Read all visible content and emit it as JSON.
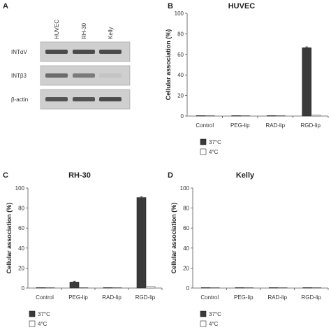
{
  "panels": {
    "a": {
      "letter": "A"
    },
    "b": {
      "letter": "B"
    },
    "c": {
      "letter": "C"
    },
    "d": {
      "letter": "D"
    }
  },
  "gel": {
    "lanes": [
      "HUVEC",
      "RH-30",
      "Kelly"
    ],
    "rows": [
      {
        "label": "INTαV",
        "intensity": [
          0.9,
          0.9,
          0.9
        ]
      },
      {
        "label": "INTβ3",
        "intensity": [
          0.7,
          0.6,
          0.15
        ]
      },
      {
        "label": "β-actin",
        "intensity": [
          0.85,
          0.85,
          0.9
        ]
      }
    ]
  },
  "legend": {
    "dark_label": "37°C",
    "light_label": "4°C"
  },
  "colors": {
    "dark_bar": "#3a3a3a",
    "light_bar": "#ffffff",
    "gel_bg": "#cfcfcf"
  },
  "chart_data": [
    {
      "type": "bar",
      "title": "HUVEC",
      "ylabel": "Cellular association (%)",
      "categories": [
        "Control",
        "PEG-lip",
        "RAD-lip",
        "RGD-lip"
      ],
      "ylim": [
        0,
        100
      ],
      "yticks": [
        0,
        20,
        40,
        60,
        80,
        100
      ],
      "series": [
        {
          "name": "37°C",
          "values": [
            0.3,
            0.3,
            0.3,
            66.5
          ]
        },
        {
          "name": "4°C",
          "values": [
            0.1,
            0.1,
            0.1,
            1.0
          ]
        }
      ]
    },
    {
      "type": "bar",
      "title": "RH-30",
      "ylabel": "Cellular association (%)",
      "categories": [
        "Control",
        "PEG-lip",
        "RAD-lip",
        "RGD-lip"
      ],
      "ylim": [
        0,
        100
      ],
      "yticks": [
        0,
        20,
        40,
        60,
        80,
        100
      ],
      "series": [
        {
          "name": "37°C",
          "values": [
            0.3,
            6.0,
            0.3,
            90.5
          ]
        },
        {
          "name": "4°C",
          "values": [
            0.1,
            0.2,
            0.1,
            1.5
          ]
        }
      ]
    },
    {
      "type": "bar",
      "title": "Kelly",
      "ylabel": "Cellular association (%)",
      "categories": [
        "Control",
        "PEG-lip",
        "RAD-lip",
        "RGD-lip"
      ],
      "ylim": [
        0,
        100
      ],
      "yticks": [
        0,
        20,
        40,
        60,
        80,
        100
      ],
      "series": [
        {
          "name": "37°C",
          "values": [
            0.3,
            0.3,
            0.3,
            0.3
          ]
        },
        {
          "name": "4°C",
          "values": [
            0.1,
            0.1,
            0.1,
            0.1
          ]
        }
      ]
    }
  ]
}
